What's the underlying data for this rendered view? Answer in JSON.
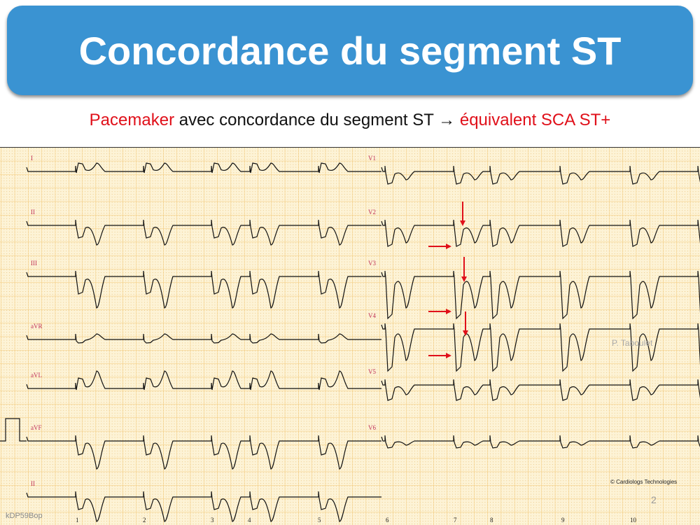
{
  "header": {
    "title": "Concordance du segment ST"
  },
  "subtitle": {
    "part1": "Pacemaker",
    "part2": " avec concordance du segment ST ",
    "arrow": "→",
    "part3": " équivalent SCA ST+"
  },
  "ecg": {
    "leads_left": [
      "I",
      "II",
      "III",
      "aVR",
      "aVL",
      "aVF",
      "II"
    ],
    "leads_right": [
      "V1",
      "V2",
      "V3",
      "V4",
      "V5",
      "V6"
    ],
    "second_marks": [
      "1",
      "2",
      "3",
      "4",
      "5",
      "6",
      "7",
      "8",
      "9",
      "10"
    ],
    "grid_color": "#f2c878",
    "paper_color": "#fdf3d6",
    "trace_color": "#111111",
    "arrow_color": "#e0101a"
  },
  "author": "P. Taboulet",
  "copyright": "© Cardiologs Technologies",
  "page_number": "2",
  "code": "kDP59Bop"
}
